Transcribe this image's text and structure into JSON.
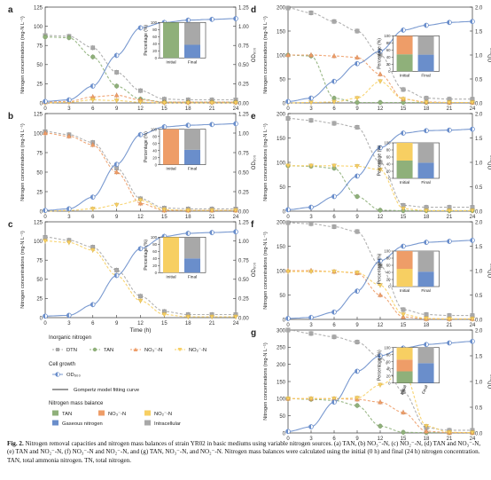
{
  "caption": {
    "label": "Fig. 2.",
    "text": "Nitrogen removal capacities and nitrogen mass balances of strain YR02 in basic mediums using variable nitrogen sources. (a) TAN, (b) NO₃⁻-N, (c) NO₂⁻-N, (d) TAN and NO₃⁻-N, (e) TAN and NO₂⁻-N, (f) NO₃⁻-N and NO₂⁻-N, and (g) TAN, NO₃⁻-N, and NO₂⁻-N. Nitrogen mass balances were calculated using the initial (0 h) and final (24 h) nitrogen concentration. TAN, total ammonia nitrogen. TN, total nitrogen."
  },
  "colors": {
    "DTN": "#a8a8a8",
    "TAN": "#8fb07a",
    "NO3": "#ee9d68",
    "NO2": "#f7cf62",
    "OD": "#6a8ecb",
    "gaseous": "#6a8ecb",
    "intracellular": "#a8a8a8"
  },
  "legend": {
    "inorganic_title": "Inorganic nitrogen",
    "inorganic": [
      "DTN",
      "TAN",
      "NO₃⁻-N",
      "NO₂⁻-N"
    ],
    "cell_title": "Cell growth",
    "cell": "OD₆₀₀",
    "fit": "Gompertz model fitting curve",
    "mass_title": "Nitrogen mass balance",
    "mass": [
      "TAN",
      "NO₃⁻-N",
      "NO₂⁻-N",
      "Gaseous nitrogen",
      "Intracellular"
    ]
  },
  "chart_data": [
    {
      "panel": "a",
      "type": "line",
      "ylabel": "Nitrogen concentrations (mg-N L⁻¹)",
      "y2label": "OD₆₀₀",
      "xlabel": "",
      "x": [
        0,
        3,
        6,
        9,
        12,
        15,
        18,
        21,
        24
      ],
      "ylim": [
        0,
        125
      ],
      "yticks": [
        0,
        25,
        50,
        75,
        100,
        125
      ],
      "y2lim": [
        0,
        1.25
      ],
      "y2ticks": [
        "0.00",
        "0.25",
        "0.50",
        "0.75",
        "1.00",
        "1.25"
      ],
      "series": [
        {
          "key": "DTN",
          "values": [
            88,
            87,
            72,
            40,
            16,
            5,
            4,
            4,
            4
          ]
        },
        {
          "key": "TAN",
          "values": [
            86,
            85,
            60,
            22,
            5,
            1,
            1,
            1,
            1
          ]
        },
        {
          "key": "NO3",
          "values": [
            1,
            2,
            8,
            10,
            4,
            1,
            1,
            1,
            1
          ]
        },
        {
          "key": "NO2",
          "values": [
            0,
            1,
            4,
            3,
            1,
            0,
            0,
            0,
            0
          ]
        },
        {
          "key": "OD",
          "values": [
            0.02,
            0.04,
            0.22,
            0.62,
            0.98,
            1.05,
            1.08,
            1.09,
            1.1
          ]
        }
      ],
      "inset": {
        "ylabel": "Percentage (%)",
        "categories": [
          "Initial",
          "Final"
        ],
        "initial": [
          {
            "key": "TAN",
            "value": 100
          }
        ],
        "final": [
          {
            "key": "gaseous",
            "value": 37
          },
          {
            "key": "intracellular",
            "value": 63
          }
        ]
      }
    },
    {
      "panel": "b",
      "type": "line",
      "ylabel": "Nitrogen concentrations (mg-N L⁻¹)",
      "y2label": "OD₆₀₀",
      "xlabel": "",
      "x": [
        0,
        3,
        6,
        9,
        12,
        15,
        18,
        21,
        24
      ],
      "ylim": [
        0,
        125
      ],
      "yticks": [
        0,
        25,
        50,
        75,
        100,
        125
      ],
      "y2lim": [
        0,
        1.25
      ],
      "y2ticks": [
        "0.00",
        "0.25",
        "0.50",
        "0.75",
        "1.00",
        "1.25"
      ],
      "series": [
        {
          "key": "DTN",
          "values": [
            102,
            98,
            88,
            55,
            16,
            4,
            3,
            3,
            3
          ]
        },
        {
          "key": "NO3",
          "values": [
            100,
            96,
            85,
            50,
            10,
            1,
            1,
            1,
            1
          ]
        },
        {
          "key": "NO2",
          "values": [
            0,
            1,
            3,
            8,
            14,
            2,
            1,
            1,
            1
          ]
        },
        {
          "key": "OD",
          "values": [
            0.01,
            0.03,
            0.18,
            0.6,
            0.98,
            1.08,
            1.1,
            1.11,
            1.12
          ]
        }
      ],
      "inset": {
        "ylabel": "Percentage (%)",
        "categories": [
          "Initial",
          "Final"
        ],
        "initial": [
          {
            "key": "NO3",
            "value": 100
          }
        ],
        "final": [
          {
            "key": "gaseous",
            "value": 42
          },
          {
            "key": "intracellular",
            "value": 58
          }
        ]
      }
    },
    {
      "panel": "c",
      "type": "line",
      "ylabel": "Nitrogen concentrations (mg-N L⁻¹)",
      "y2label": "OD₆₀₀",
      "xlabel": "Time (h)",
      "x": [
        0,
        3,
        6,
        9,
        12,
        15,
        18,
        21,
        24
      ],
      "ylim": [
        0,
        125
      ],
      "yticks": [
        0,
        25,
        50,
        75,
        100,
        125
      ],
      "y2lim": [
        0,
        1.25
      ],
      "y2ticks": [
        "0.00",
        "0.25",
        "0.50",
        "0.75",
        "1.00",
        "1.25"
      ],
      "series": [
        {
          "key": "DTN",
          "values": [
            105,
            101,
            92,
            62,
            28,
            8,
            4,
            4,
            4
          ]
        },
        {
          "key": "NO2",
          "values": [
            100,
            98,
            88,
            55,
            22,
            4,
            1,
            1,
            1
          ]
        },
        {
          "key": "OD",
          "values": [
            0.02,
            0.03,
            0.17,
            0.55,
            0.9,
            1.06,
            1.1,
            1.11,
            1.12
          ]
        }
      ],
      "inset": {
        "ylabel": "Percentage (%)",
        "categories": [
          "Initial",
          "Final"
        ],
        "initial": [
          {
            "key": "NO2",
            "value": 100
          }
        ],
        "final": [
          {
            "key": "gaseous",
            "value": 40
          },
          {
            "key": "intracellular",
            "value": 60
          }
        ]
      }
    },
    {
      "panel": "d",
      "type": "line",
      "ylabel": "Nitrogen concentrations (mg-N L⁻¹)",
      "y2label": "OD₆₀₀",
      "xlabel": "",
      "x": [
        0,
        3,
        6,
        9,
        12,
        15,
        18,
        21,
        24
      ],
      "ylim": [
        0,
        200
      ],
      "yticks": [
        0,
        50,
        100,
        150,
        200
      ],
      "y2lim": [
        0,
        2.0
      ],
      "y2ticks": [
        "0.0",
        "0.5",
        "1.0",
        "1.5",
        "2.0"
      ],
      "series": [
        {
          "key": "DTN",
          "values": [
            198,
            188,
            170,
            150,
            100,
            28,
            10,
            8,
            8
          ]
        },
        {
          "key": "TAN",
          "values": [
            100,
            98,
            10,
            1,
            1,
            1,
            1,
            1,
            1
          ]
        },
        {
          "key": "NO3",
          "values": [
            100,
            100,
            98,
            95,
            60,
            8,
            2,
            1,
            1
          ]
        },
        {
          "key": "NO2",
          "values": [
            0,
            1,
            2,
            10,
            45,
            8,
            1,
            1,
            1
          ]
        },
        {
          "key": "OD",
          "values": [
            0.03,
            0.1,
            0.45,
            0.82,
            1.08,
            1.52,
            1.62,
            1.68,
            1.7
          ]
        }
      ],
      "inset": {
        "ylabel": "Percentage (%)",
        "categories": [
          "Initial",
          "Final"
        ],
        "initial": [
          {
            "key": "TAN",
            "value": 48
          },
          {
            "key": "NO3",
            "value": 52
          }
        ],
        "final": [
          {
            "key": "gaseous",
            "value": 47
          },
          {
            "key": "intracellular",
            "value": 53
          }
        ]
      }
    },
    {
      "panel": "e",
      "type": "line",
      "ylabel": "Nitrogen concentrations (mg-N L⁻¹)",
      "y2label": "OD₆₀₀",
      "xlabel": "",
      "x": [
        0,
        3,
        6,
        9,
        12,
        15,
        18,
        21,
        24
      ],
      "ylim": [
        0,
        200
      ],
      "yticks": [
        0,
        50,
        100,
        150,
        200
      ],
      "y2lim": [
        0,
        2.0
      ],
      "y2ticks": [
        "0.0",
        "0.5",
        "1.0",
        "1.5",
        "2.0"
      ],
      "series": [
        {
          "key": "DTN",
          "values": [
            190,
            186,
            180,
            172,
            100,
            12,
            8,
            8,
            8
          ]
        },
        {
          "key": "TAN",
          "values": [
            93,
            92,
            88,
            30,
            2,
            1,
            1,
            1,
            1
          ]
        },
        {
          "key": "NO2",
          "values": [
            93,
            93,
            93,
            92,
            85,
            5,
            1,
            1,
            1
          ]
        },
        {
          "key": "OD",
          "values": [
            0.03,
            0.08,
            0.3,
            0.72,
            1.3,
            1.6,
            1.65,
            1.66,
            1.68
          ]
        }
      ],
      "inset": {
        "ylabel": "Percentage (%)",
        "categories": [
          "Initial",
          "Final"
        ],
        "initial": [
          {
            "key": "TAN",
            "value": 50
          },
          {
            "key": "NO2",
            "value": 50
          }
        ],
        "final": [
          {
            "key": "gaseous",
            "value": 44
          },
          {
            "key": "intracellular",
            "value": 56
          }
        ]
      }
    },
    {
      "panel": "f",
      "type": "line",
      "ylabel": "Nitrogen concentrations (mg-N L⁻¹)",
      "y2label": "OD₆₀₀",
      "xlabel": "",
      "x": [
        0,
        3,
        6,
        9,
        12,
        15,
        18,
        21,
        24
      ],
      "ylim": [
        0,
        200
      ],
      "yticks": [
        0,
        50,
        100,
        150,
        200
      ],
      "y2lim": [
        0,
        2.0
      ],
      "y2ticks": [
        "0.0",
        "0.5",
        "1.0",
        "1.5",
        "2.0"
      ],
      "series": [
        {
          "key": "DTN",
          "values": [
            198,
            196,
            190,
            180,
            110,
            20,
            10,
            8,
            8
          ]
        },
        {
          "key": "NO3",
          "values": [
            100,
            100,
            98,
            95,
            50,
            5,
            1,
            1,
            1
          ]
        },
        {
          "key": "NO2",
          "values": [
            98,
            98,
            98,
            96,
            70,
            10,
            2,
            1,
            1
          ]
        },
        {
          "key": "OD",
          "values": [
            0.02,
            0.04,
            0.15,
            0.58,
            1.2,
            1.5,
            1.58,
            1.6,
            1.62
          ]
        }
      ],
      "inset": {
        "ylabel": "Percentage (%)",
        "categories": [
          "Initial",
          "Final"
        ],
        "initial": [
          {
            "key": "NO2",
            "value": 50
          },
          {
            "key": "NO3",
            "value": 50
          }
        ],
        "final": [
          {
            "key": "gaseous",
            "value": 42
          },
          {
            "key": "intracellular",
            "value": 58
          }
        ]
      }
    },
    {
      "panel": "g",
      "type": "line",
      "ylabel": "Nitrogen concentrations (mg-N L⁻¹)",
      "y2label": "OD₆₀₀",
      "xlabel": "Time (h)",
      "x": [
        0,
        3,
        6,
        9,
        12,
        15,
        18,
        21,
        24
      ],
      "ylim": [
        0,
        300
      ],
      "yticks": [
        0,
        50,
        100,
        150,
        200,
        250,
        300
      ],
      "y2lim": [
        0,
        2.0
      ],
      "y2ticks": [
        "0.0",
        "0.5",
        "1.0",
        "1.5",
        "2.0"
      ],
      "series": [
        {
          "key": "DTN",
          "values": [
            300,
            290,
            280,
            265,
            220,
            120,
            15,
            8,
            8
          ]
        },
        {
          "key": "TAN",
          "values": [
            100,
            98,
            95,
            80,
            20,
            2,
            1,
            1,
            1
          ]
        },
        {
          "key": "NO3",
          "values": [
            100,
            100,
            100,
            98,
            90,
            60,
            5,
            1,
            1
          ]
        },
        {
          "key": "NO2",
          "values": [
            100,
            100,
            100,
            102,
            140,
            180,
            20,
            2,
            1
          ]
        },
        {
          "key": "OD",
          "values": [
            0.03,
            0.12,
            0.6,
            1.2,
            1.5,
            1.65,
            1.72,
            1.75,
            1.78
          ]
        }
      ],
      "inset": {
        "ylabel": "Percentage (%)",
        "categories": [
          "Initial",
          "Final"
        ],
        "initial": [
          {
            "key": "TAN",
            "value": 33
          },
          {
            "key": "NO3",
            "value": 33
          },
          {
            "key": "NO2",
            "value": 34
          }
        ],
        "final": [
          {
            "key": "gaseous",
            "value": 56
          },
          {
            "key": "intracellular",
            "value": 44
          }
        ]
      }
    }
  ]
}
